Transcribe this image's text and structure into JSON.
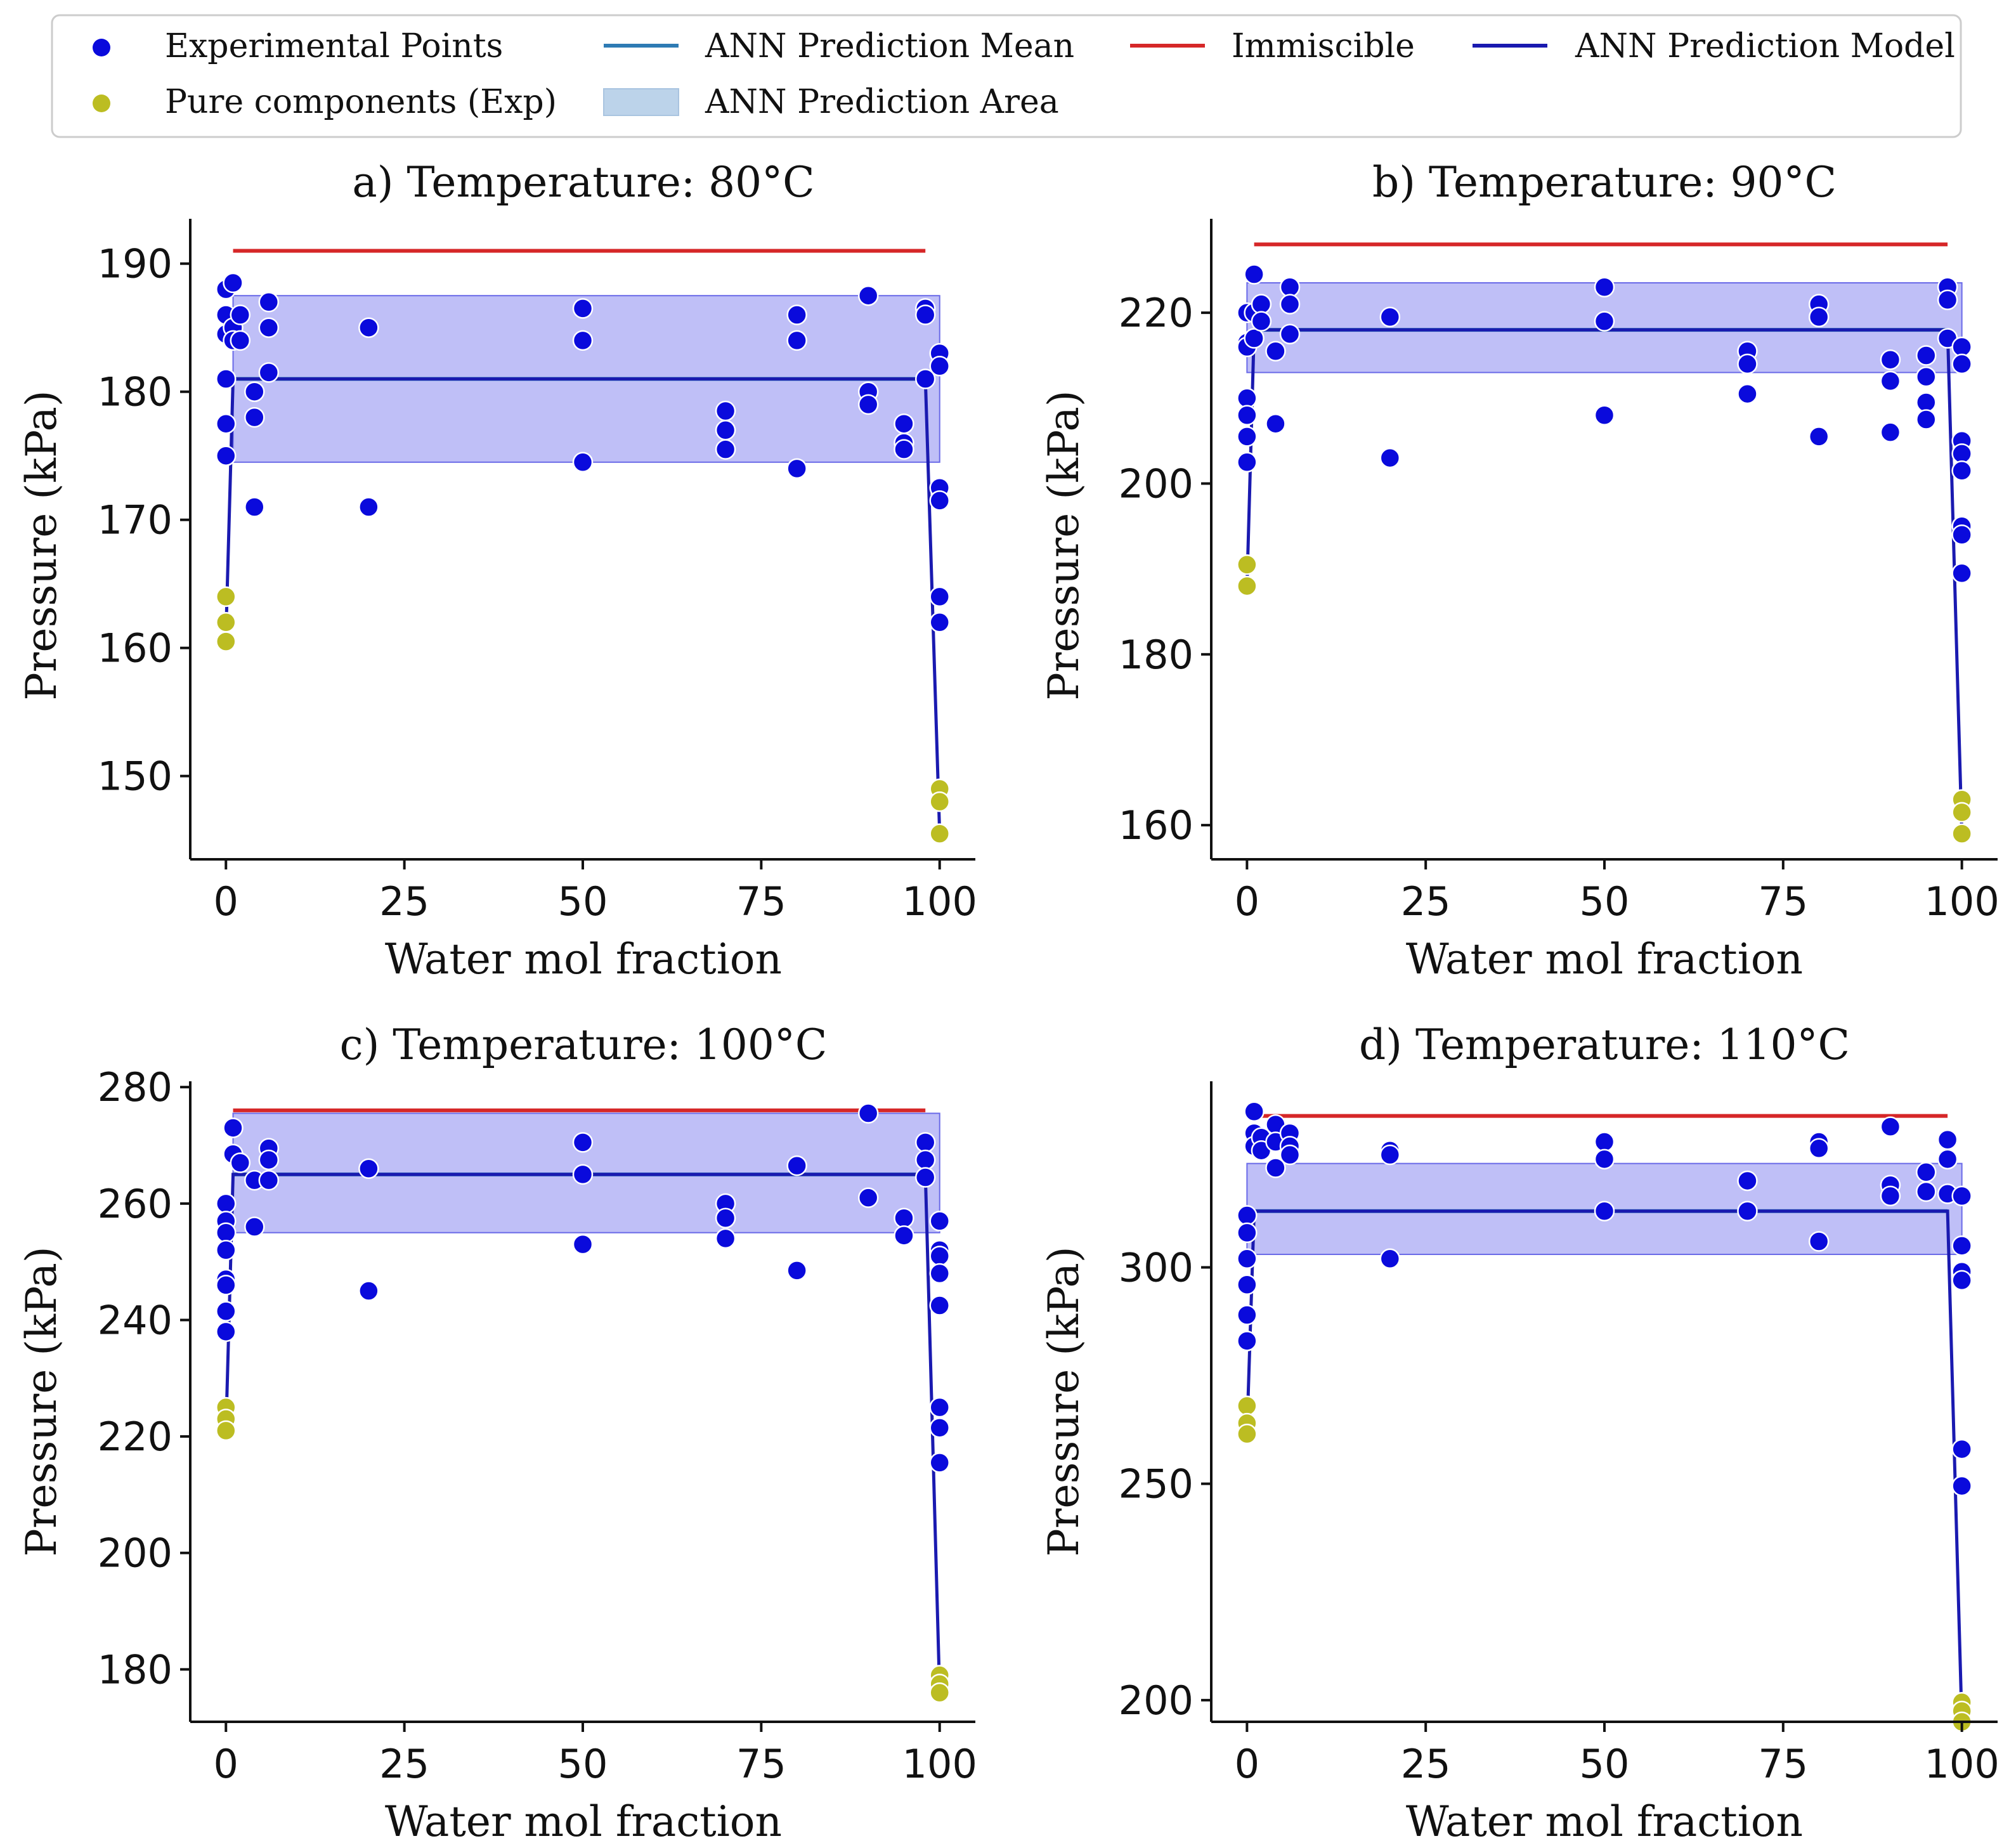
{
  "legend": {
    "items": [
      {
        "key": "exp",
        "label": "Experimental Points",
        "kind": "dot",
        "color": "#0a0adc"
      },
      {
        "key": "mean",
        "label": "ANN Prediction Mean",
        "kind": "line",
        "color": "#2e7bb4"
      },
      {
        "key": "immiscible",
        "label": "Immiscible",
        "kind": "line",
        "color": "#d62728"
      },
      {
        "key": "model",
        "label": "ANN Prediction Model",
        "kind": "line",
        "color": "#1a1ab0"
      },
      {
        "key": "pure",
        "label": "Pure components (Exp)",
        "kind": "dot",
        "color": "#bcbd22"
      },
      {
        "key": "area",
        "label": "ANN Prediction Area",
        "kind": "patch",
        "color": "#bcd3ea"
      }
    ]
  },
  "colors": {
    "exp": "#0a0adc",
    "pure": "#bcbd22",
    "mean": "#2e7bb4",
    "immiscible": "#d62728",
    "model": "#1a1ab0",
    "area": "#8080f0"
  },
  "chart_data": [
    {
      "type": "scatter",
      "title": "a) Temperature: 80°C",
      "xlabel": "Water mol fraction",
      "ylabel": "Pressure (kPa)",
      "xlim": [
        -5,
        105
      ],
      "ylim": [
        143.5,
        193.5
      ],
      "xticks": [
        0,
        25,
        50,
        75,
        100
      ],
      "yticks": [
        150,
        160,
        170,
        180,
        190
      ],
      "immiscible": {
        "value": 191,
        "x": [
          1,
          98
        ]
      },
      "mean": {
        "value": 181,
        "x": [
          1,
          98
        ]
      },
      "area": {
        "low": 174.5,
        "high": 187.5,
        "x": [
          1,
          100
        ]
      },
      "model_line": [
        [
          0,
          161
        ],
        [
          1,
          181
        ],
        [
          98,
          181
        ],
        [
          100,
          145.5
        ]
      ],
      "experimental": [
        [
          0,
          188
        ],
        [
          0,
          186
        ],
        [
          0,
          184.5
        ],
        [
          0,
          181
        ],
        [
          0,
          177.5
        ],
        [
          0,
          175
        ],
        [
          1,
          188.5
        ],
        [
          1,
          185
        ],
        [
          1,
          184
        ],
        [
          2,
          186
        ],
        [
          2,
          184
        ],
        [
          4,
          180
        ],
        [
          4,
          178
        ],
        [
          4,
          171
        ],
        [
          6,
          187
        ],
        [
          6,
          185
        ],
        [
          6,
          181.5
        ],
        [
          20,
          185
        ],
        [
          20,
          171
        ],
        [
          50,
          186.5
        ],
        [
          50,
          184
        ],
        [
          50,
          174.5
        ],
        [
          70,
          178.5
        ],
        [
          70,
          177
        ],
        [
          70,
          175.5
        ],
        [
          80,
          186
        ],
        [
          80,
          184
        ],
        [
          80,
          174
        ],
        [
          90,
          187.5
        ],
        [
          90,
          180
        ],
        [
          90,
          179
        ],
        [
          95,
          177.5
        ],
        [
          95,
          176
        ],
        [
          95,
          175.5
        ],
        [
          98,
          186.5
        ],
        [
          98,
          186
        ],
        [
          98,
          181
        ],
        [
          100,
          183
        ],
        [
          100,
          182
        ],
        [
          100,
          172.5
        ],
        [
          100,
          171.5
        ],
        [
          100,
          164
        ],
        [
          100,
          162
        ]
      ],
      "pure": [
        [
          0,
          164
        ],
        [
          0,
          162
        ],
        [
          0,
          160.5
        ],
        [
          100,
          149
        ],
        [
          100,
          148
        ],
        [
          100,
          145.5
        ]
      ]
    },
    {
      "type": "scatter",
      "title": "b) Temperature: 90°C",
      "xlabel": "Water mol fraction",
      "ylabel": "Pressure (kPa)",
      "xlim": [
        -5,
        105
      ],
      "ylim": [
        156,
        231
      ],
      "xticks": [
        0,
        25,
        50,
        75,
        100
      ],
      "yticks": [
        160,
        180,
        200,
        220
      ],
      "immiscible": {
        "value": 228,
        "x": [
          1,
          98
        ]
      },
      "mean": {
        "value": 218,
        "x": [
          1,
          98
        ]
      },
      "area": {
        "low": 213,
        "high": 223.5,
        "x": [
          0,
          100
        ]
      },
      "model_line": [
        [
          0,
          188
        ],
        [
          1,
          218
        ],
        [
          98,
          218
        ],
        [
          100,
          159
        ]
      ],
      "experimental": [
        [
          0,
          220
        ],
        [
          0,
          216.5
        ],
        [
          0,
          216
        ],
        [
          0,
          210
        ],
        [
          0,
          208
        ],
        [
          0,
          205.5
        ],
        [
          0,
          202.5
        ],
        [
          1,
          224.5
        ],
        [
          1,
          220
        ],
        [
          1,
          217
        ],
        [
          2,
          221
        ],
        [
          2,
          219
        ],
        [
          4,
          215.5
        ],
        [
          4,
          207
        ],
        [
          6,
          223
        ],
        [
          6,
          221
        ],
        [
          6,
          217.5
        ],
        [
          20,
          219.5
        ],
        [
          20,
          203
        ],
        [
          50,
          223
        ],
        [
          50,
          219
        ],
        [
          50,
          208
        ],
        [
          70,
          215.5
        ],
        [
          70,
          214
        ],
        [
          70,
          210.5
        ],
        [
          80,
          221
        ],
        [
          80,
          219.5
        ],
        [
          80,
          205.5
        ],
        [
          90,
          214.5
        ],
        [
          90,
          212
        ],
        [
          90,
          206
        ],
        [
          95,
          215
        ],
        [
          95,
          212.5
        ],
        [
          95,
          209.5
        ],
        [
          95,
          207.5
        ],
        [
          98,
          223
        ],
        [
          98,
          221.5
        ],
        [
          98,
          217
        ],
        [
          100,
          216
        ],
        [
          100,
          214
        ],
        [
          100,
          205
        ],
        [
          100,
          203.5
        ],
        [
          100,
          201.5
        ],
        [
          100,
          195
        ],
        [
          100,
          194
        ],
        [
          100,
          189.5
        ]
      ],
      "pure": [
        [
          0,
          190.5
        ],
        [
          0,
          188
        ],
        [
          100,
          163
        ],
        [
          100,
          161.5
        ],
        [
          100,
          159
        ]
      ]
    },
    {
      "type": "scatter",
      "title": "c) Temperature: 100°C",
      "xlabel": "Water mol fraction",
      "ylabel": "Pressure (kPa)",
      "xlim": [
        -5,
        105
      ],
      "ylim": [
        171,
        281
      ],
      "xticks": [
        0,
        25,
        50,
        75,
        100
      ],
      "yticks": [
        180,
        200,
        220,
        240,
        260,
        280
      ],
      "immiscible": {
        "value": 276,
        "x": [
          1,
          98
        ]
      },
      "mean": {
        "value": 265,
        "x": [
          1,
          98
        ]
      },
      "area": {
        "low": 255,
        "high": 275.5,
        "x": [
          1,
          100
        ]
      },
      "model_line": [
        [
          0,
          221
        ],
        [
          1,
          265
        ],
        [
          98,
          265
        ],
        [
          100,
          176
        ]
      ],
      "experimental": [
        [
          0,
          260
        ],
        [
          0,
          257
        ],
        [
          0,
          255
        ],
        [
          0,
          252
        ],
        [
          0,
          247
        ],
        [
          0,
          246
        ],
        [
          0,
          241.5
        ],
        [
          0,
          238
        ],
        [
          1,
          273
        ],
        [
          1,
          268.5
        ],
        [
          2,
          267
        ],
        [
          4,
          264
        ],
        [
          4,
          256
        ],
        [
          6,
          269.5
        ],
        [
          6,
          267.5
        ],
        [
          6,
          264
        ],
        [
          20,
          266
        ],
        [
          20,
          245
        ],
        [
          50,
          270.5
        ],
        [
          50,
          265
        ],
        [
          50,
          253
        ],
        [
          70,
          260
        ],
        [
          70,
          257.5
        ],
        [
          70,
          254
        ],
        [
          80,
          266.5
        ],
        [
          80,
          248.5
        ],
        [
          90,
          275.5
        ],
        [
          90,
          261
        ],
        [
          95,
          257.5
        ],
        [
          95,
          254.5
        ],
        [
          98,
          270.5
        ],
        [
          98,
          267.5
        ],
        [
          98,
          264.5
        ],
        [
          100,
          257
        ],
        [
          100,
          252
        ],
        [
          100,
          251
        ],
        [
          100,
          248
        ],
        [
          100,
          242.5
        ],
        [
          100,
          225
        ],
        [
          100,
          221.5
        ],
        [
          100,
          215.5
        ]
      ],
      "pure": [
        [
          0,
          225
        ],
        [
          0,
          223
        ],
        [
          0,
          221
        ],
        [
          100,
          179
        ],
        [
          100,
          177.5
        ],
        [
          100,
          176
        ]
      ]
    },
    {
      "type": "scatter",
      "title": "d) Temperature: 110°C",
      "xlabel": "Water mol fraction",
      "ylabel": "Pressure (kPa)",
      "xlim": [
        -5,
        105
      ],
      "ylim": [
        195,
        343
      ],
      "xticks": [
        0,
        25,
        50,
        75,
        100
      ],
      "yticks": [
        200,
        250,
        300
      ],
      "immiscible": {
        "value": 335,
        "x": [
          1,
          98
        ]
      },
      "mean": {
        "value": 313,
        "x": [
          1,
          98
        ]
      },
      "area": {
        "low": 303,
        "high": 324,
        "x": [
          0,
          100
        ]
      },
      "model_line": [
        [
          0,
          262
        ],
        [
          1,
          313
        ],
        [
          98,
          313
        ],
        [
          100,
          195
        ]
      ],
      "experimental": [
        [
          0,
          312
        ],
        [
          0,
          308
        ],
        [
          0,
          302
        ],
        [
          0,
          296
        ],
        [
          0,
          289
        ],
        [
          0,
          283
        ],
        [
          1,
          336
        ],
        [
          1,
          331
        ],
        [
          1,
          328
        ],
        [
          2,
          330
        ],
        [
          2,
          327
        ],
        [
          4,
          333
        ],
        [
          4,
          329
        ],
        [
          4,
          323
        ],
        [
          6,
          331
        ],
        [
          6,
          328
        ],
        [
          6,
          326
        ],
        [
          20,
          327
        ],
        [
          20,
          326
        ],
        [
          20,
          302
        ],
        [
          50,
          329
        ],
        [
          50,
          325
        ],
        [
          50,
          313
        ],
        [
          70,
          320
        ],
        [
          70,
          313
        ],
        [
          80,
          329
        ],
        [
          80,
          327.5
        ],
        [
          80,
          306
        ],
        [
          90,
          332.5
        ],
        [
          90,
          319
        ],
        [
          90,
          316.5
        ],
        [
          95,
          322
        ],
        [
          95,
          317.5
        ],
        [
          98,
          329.5
        ],
        [
          98,
          325
        ],
        [
          98,
          317
        ],
        [
          100,
          316.5
        ],
        [
          100,
          305
        ],
        [
          100,
          299
        ],
        [
          100,
          297
        ],
        [
          100,
          258
        ],
        [
          100,
          249.5
        ]
      ],
      "pure": [
        [
          0,
          268
        ],
        [
          0,
          264
        ],
        [
          0,
          261.5
        ],
        [
          100,
          199.5
        ],
        [
          100,
          197.5
        ],
        [
          100,
          195
        ]
      ]
    }
  ]
}
